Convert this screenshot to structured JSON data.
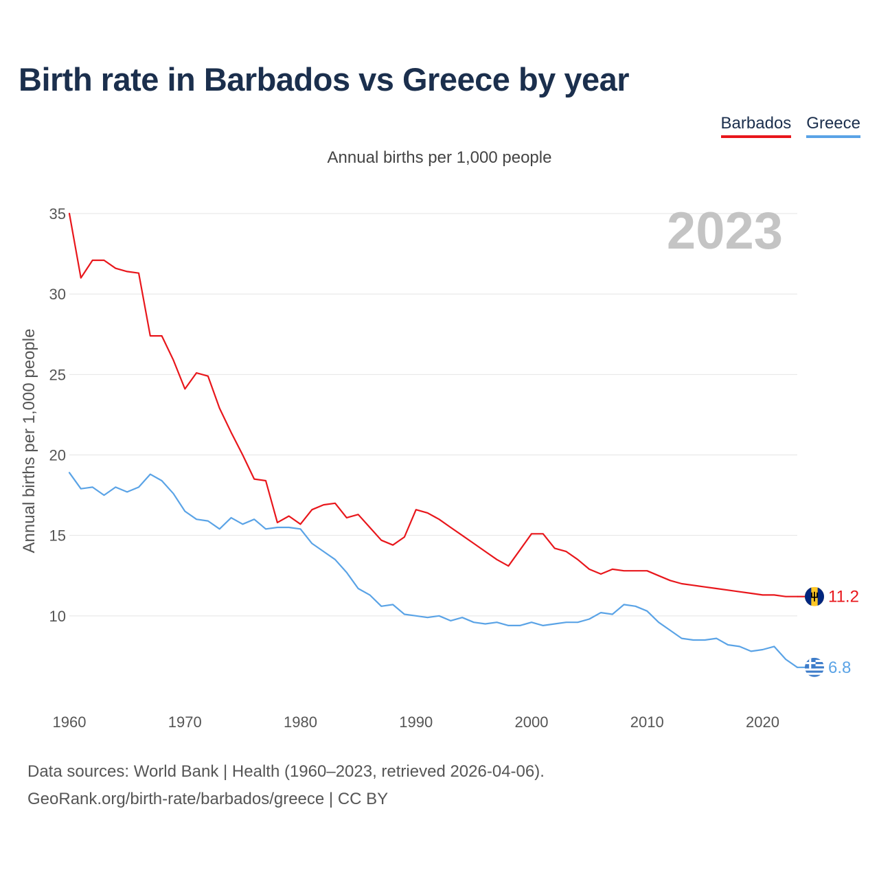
{
  "title": "Birth rate in Barbados vs Greece by year",
  "subtitle": "Annual births per 1,000 people",
  "year_label": "2023",
  "legend": [
    {
      "name": "Barbados",
      "color": "#e8161b"
    },
    {
      "name": "Greece",
      "color": "#5aa3e6"
    }
  ],
  "footer": {
    "sources": "Data sources: World Bank | Health (1960–2023, retrieved 2026-04-06).",
    "credit": "GeoRank.org/birth-rate/barbados/greece | CC BY"
  },
  "chart_data": {
    "type": "line",
    "title": "Birth rate in Barbados vs Greece by year",
    "xlabel": "",
    "ylabel": "Annual births per 1,000 people",
    "xlim": [
      1960,
      2023
    ],
    "ylim": [
      5,
      35
    ],
    "x_ticks": [
      1960,
      1970,
      1980,
      1990,
      2000,
      2010,
      2020
    ],
    "y_ticks": [
      10,
      15,
      20,
      25,
      30,
      35
    ],
    "grid": true,
    "legend_position": "top-right",
    "x": [
      1960,
      1961,
      1962,
      1963,
      1964,
      1965,
      1966,
      1967,
      1968,
      1969,
      1970,
      1971,
      1972,
      1973,
      1974,
      1975,
      1976,
      1977,
      1978,
      1979,
      1980,
      1981,
      1982,
      1983,
      1984,
      1985,
      1986,
      1987,
      1988,
      1989,
      1990,
      1991,
      1992,
      1993,
      1994,
      1995,
      1996,
      1997,
      1998,
      1999,
      2000,
      2001,
      2002,
      2003,
      2004,
      2005,
      2006,
      2007,
      2008,
      2009,
      2010,
      2011,
      2012,
      2013,
      2014,
      2015,
      2016,
      2017,
      2018,
      2019,
      2020,
      2021,
      2022,
      2023
    ],
    "series": [
      {
        "name": "Barbados",
        "color": "#e8161b",
        "end_label": "11.2",
        "values": [
          35.0,
          31.0,
          32.1,
          32.1,
          31.6,
          31.4,
          31.3,
          27.4,
          27.4,
          25.9,
          24.1,
          25.1,
          24.9,
          22.9,
          21.4,
          20.0,
          18.5,
          18.4,
          15.8,
          16.2,
          15.7,
          16.6,
          16.9,
          17.0,
          16.1,
          16.3,
          15.5,
          14.7,
          14.4,
          14.9,
          16.6,
          16.4,
          16.0,
          15.5,
          15.0,
          14.5,
          14.0,
          13.5,
          13.1,
          14.1,
          15.1,
          15.1,
          14.2,
          14.0,
          13.5,
          12.9,
          12.6,
          12.9,
          12.8,
          12.8,
          12.8,
          12.5,
          12.2,
          12.0,
          11.9,
          11.8,
          11.7,
          11.6,
          11.5,
          11.4,
          11.3,
          11.3,
          11.2,
          11.2
        ]
      },
      {
        "name": "Greece",
        "color": "#5aa3e6",
        "end_label": "6.8",
        "values": [
          18.9,
          17.9,
          18.0,
          17.5,
          18.0,
          17.7,
          18.0,
          18.8,
          18.4,
          17.6,
          16.5,
          16.0,
          15.9,
          15.4,
          16.1,
          15.7,
          16.0,
          15.4,
          15.5,
          15.5,
          15.4,
          14.5,
          14.0,
          13.5,
          12.7,
          11.7,
          11.3,
          10.6,
          10.7,
          10.1,
          10.0,
          9.9,
          10.0,
          9.7,
          9.9,
          9.6,
          9.5,
          9.6,
          9.4,
          9.4,
          9.6,
          9.4,
          9.5,
          9.6,
          9.6,
          9.8,
          10.2,
          10.1,
          10.7,
          10.6,
          10.3,
          9.6,
          9.1,
          8.6,
          8.5,
          8.5,
          8.6,
          8.2,
          8.1,
          7.8,
          7.9,
          8.1,
          7.3,
          6.8
        ]
      }
    ]
  }
}
